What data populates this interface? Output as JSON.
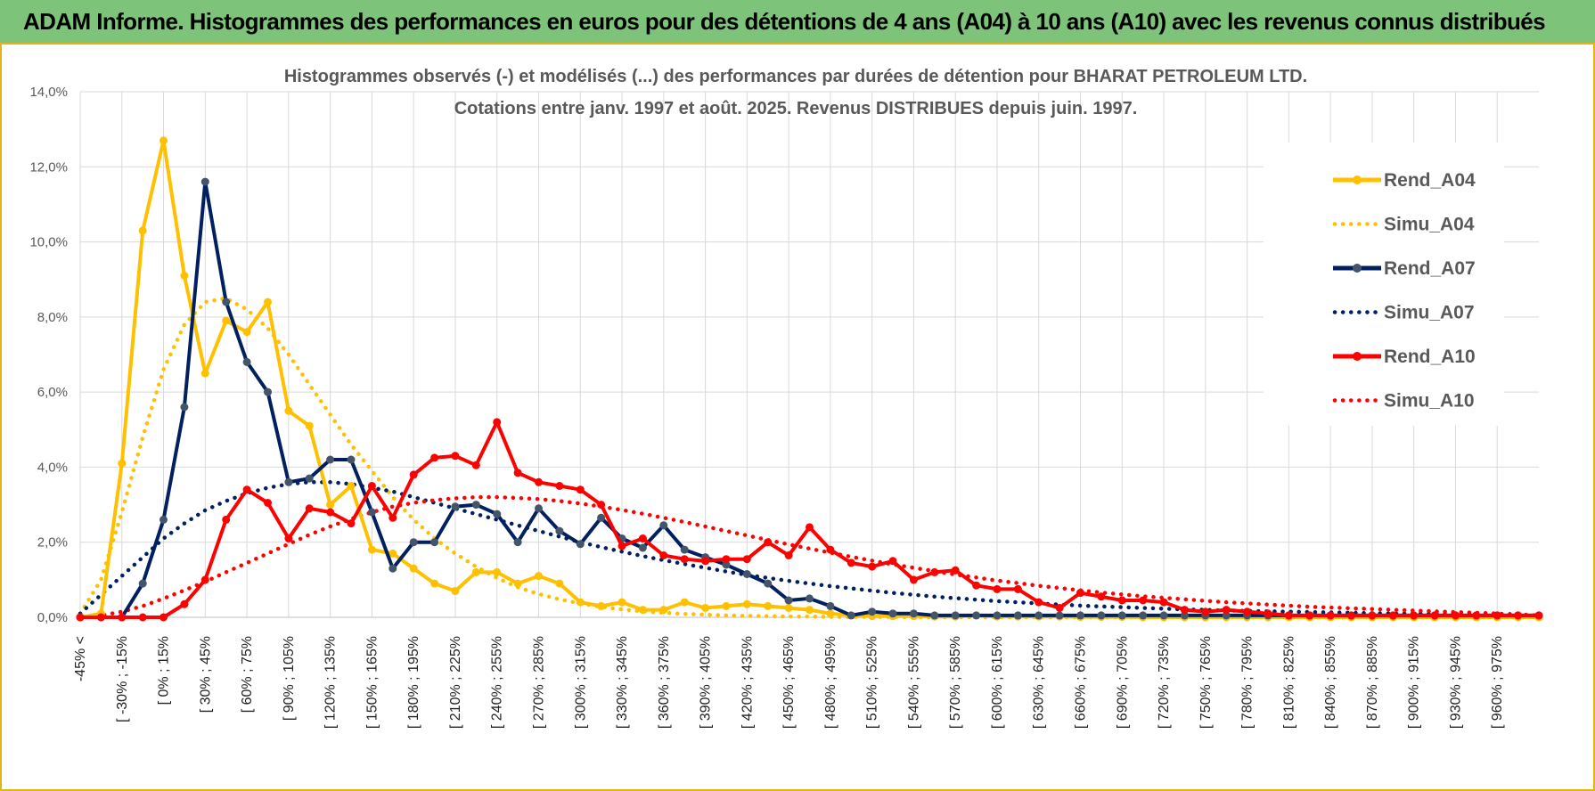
{
  "header": {
    "title": "ADAM Informe. Histogrammes des performances en euros pour des détentions de 4 ans (A04) à 10 ans (A10) avec les revenus connus distribués"
  },
  "chart_data": {
    "type": "line",
    "title": [
      "Histogrammes observés (-) et modélisés (...) des performances par durées de détention pour BHARAT PETROLEUM LTD.",
      "Cotations entre janv. 1997 et août. 2025. Revenus DISTRIBUES depuis juin. 1997."
    ],
    "y_ticks": [
      "0,0%",
      "2,0%",
      "4,0%",
      "6,0%",
      "8,0%",
      "10,0%",
      "12,0%",
      "14,0%"
    ],
    "ylim": [
      0,
      14
    ],
    "grid": true,
    "legend_position": "right",
    "x_labels": [
      "-45% <",
      "[ -30% ; -15%",
      "[ 0% ; 15%",
      "[ 30% ; 45%",
      "[ 60% ; 75%",
      "[ 90% ; 105%",
      "[ 120% ; 135%",
      "[ 150% ; 165%",
      "[ 180% ; 195%",
      "[ 210% ; 225%",
      "[ 240% ; 255%",
      "[ 270% ; 285%",
      "[ 300% ; 315%",
      "[ 330% ; 345%",
      "[ 360% ; 375%",
      "[ 390% ; 405%",
      "[ 420% ; 435%",
      "[ 450% ; 465%",
      "[ 480% ; 495%",
      "[ 510% ; 525%",
      "[ 540% ; 555%",
      "[ 570% ; 585%",
      "[ 600% ; 615%",
      "[ 630% ; 645%",
      "[ 660% ; 675%",
      "[ 690% ; 705%",
      "[ 720% ; 735%",
      "[ 750% ; 765%",
      "[ 780% ; 795%",
      "[ 810% ; 825%",
      "[ 840% ; 855%",
      "[ 870% ; 885%",
      "[ 900% ; 915%",
      "[ 930% ; 945%",
      "[ 960% ; 975%"
    ],
    "series": [
      {
        "name": "Rend_A04",
        "style": "solid",
        "color": "#ffc000",
        "values": [
          0,
          0.1,
          4.1,
          10.3,
          12.7,
          9.1,
          6.5,
          7.9,
          7.6,
          8.4,
          5.5,
          5.1,
          3.0,
          3.5,
          1.8,
          1.7,
          1.3,
          0.9,
          0.7,
          1.2,
          1.2,
          0.9,
          1.1,
          0.9,
          0.4,
          0.3,
          0.4,
          0.2,
          0.2,
          0.4,
          0.25,
          0.3,
          0.35,
          0.3,
          0.25,
          0.2,
          0.1,
          0.05,
          0.03,
          0.03,
          0.03,
          0.02,
          0.02,
          0.05,
          0.02,
          0.02,
          0.02,
          0.02,
          0.01,
          0.01,
          0.01,
          0,
          0,
          0,
          0,
          0,
          0,
          0,
          0,
          0,
          0,
          0,
          0,
          0,
          0,
          0,
          0,
          0,
          0,
          0,
          0
        ]
      },
      {
        "name": "Simu_A04",
        "style": "dotted",
        "color": "#ffc000",
        "values": [
          0.1,
          1.0,
          2.8,
          4.8,
          6.6,
          7.8,
          8.4,
          8.5,
          8.2,
          7.7,
          7.0,
          6.2,
          5.4,
          4.6,
          3.9,
          3.2,
          2.6,
          2.1,
          1.7,
          1.35,
          1.05,
          0.8,
          0.62,
          0.48,
          0.37,
          0.28,
          0.21,
          0.16,
          0.12,
          0.09,
          0.07,
          0.05,
          0.04,
          0.03,
          0.02,
          0.02,
          0.01,
          0.01,
          0.01,
          0.01,
          0,
          0,
          0,
          0,
          0,
          0,
          0,
          0,
          0,
          0,
          0,
          0,
          0,
          0,
          0,
          0,
          0,
          0,
          0,
          0,
          0,
          0,
          0,
          0,
          0,
          0,
          0,
          0,
          0,
          0,
          0
        ]
      },
      {
        "name": "Rend_A07",
        "style": "solid",
        "color": "#002060",
        "marker_color": "#44546a",
        "values": [
          0,
          0,
          0,
          0.9,
          2.6,
          5.6,
          11.6,
          8.4,
          6.8,
          6.0,
          3.6,
          3.7,
          4.2,
          4.2,
          2.8,
          1.3,
          2.0,
          2.0,
          2.95,
          3.0,
          2.75,
          2.0,
          2.9,
          2.3,
          1.95,
          2.65,
          2.1,
          1.85,
          2.45,
          1.8,
          1.6,
          1.4,
          1.15,
          0.9,
          0.45,
          0.5,
          0.3,
          0.05,
          0.15,
          0.1,
          0.1,
          0.05,
          0.05,
          0.05,
          0.05,
          0.05,
          0.05,
          0.05,
          0.05,
          0.05,
          0.05,
          0.05,
          0.05,
          0.05,
          0.05,
          0.05,
          0.05,
          0.05,
          0.05,
          0.05,
          0.05,
          0.05,
          0.05,
          0.05,
          0.05,
          0.05,
          0.05,
          0.05,
          0.05,
          0.05,
          0.05
        ]
      },
      {
        "name": "Simu_A07",
        "style": "dotted",
        "color": "#002060",
        "values": [
          0.1,
          0.6,
          1.1,
          1.6,
          2.1,
          2.5,
          2.85,
          3.1,
          3.3,
          3.45,
          3.55,
          3.6,
          3.6,
          3.55,
          3.45,
          3.35,
          3.2,
          3.05,
          2.9,
          2.75,
          2.6,
          2.45,
          2.3,
          2.15,
          2.0,
          1.87,
          1.75,
          1.63,
          1.52,
          1.42,
          1.32,
          1.22,
          1.13,
          1.05,
          0.97,
          0.9,
          0.83,
          0.77,
          0.71,
          0.65,
          0.6,
          0.55,
          0.51,
          0.47,
          0.43,
          0.4,
          0.37,
          0.34,
          0.31,
          0.29,
          0.27,
          0.25,
          0.23,
          0.21,
          0.2,
          0.18,
          0.17,
          0.16,
          0.15,
          0.14,
          0.13,
          0.12,
          0.11,
          0.1,
          0.1,
          0.09,
          0.08,
          0.07,
          0.06,
          0.05,
          0.04
        ]
      },
      {
        "name": "Rend_A10",
        "style": "solid",
        "color": "#ff0000",
        "values": [
          0,
          0,
          0,
          0,
          0,
          0.35,
          1.0,
          2.6,
          3.4,
          3.05,
          2.1,
          2.9,
          2.8,
          2.5,
          3.5,
          2.65,
          3.8,
          4.25,
          4.3,
          4.05,
          5.2,
          3.85,
          3.6,
          3.5,
          3.4,
          3.0,
          1.9,
          2.1,
          1.65,
          1.55,
          1.5,
          1.55,
          1.55,
          2.0,
          1.65,
          2.4,
          1.8,
          1.45,
          1.35,
          1.5,
          1.0,
          1.2,
          1.25,
          0.85,
          0.75,
          0.75,
          0.4,
          0.25,
          0.65,
          0.55,
          0.45,
          0.45,
          0.4,
          0.2,
          0.15,
          0.2,
          0.15,
          0.1,
          0.05,
          0.05,
          0.05,
          0.05,
          0.05,
          0.05,
          0.05,
          0.05,
          0.05,
          0.05,
          0.05,
          0.05,
          0.05
        ]
      },
      {
        "name": "Simu_A10",
        "style": "dotted",
        "color": "#ff0000",
        "values": [
          0,
          0.05,
          0.15,
          0.3,
          0.5,
          0.72,
          0.95,
          1.2,
          1.45,
          1.7,
          1.95,
          2.2,
          2.42,
          2.62,
          2.8,
          2.95,
          3.05,
          3.12,
          3.17,
          3.2,
          3.2,
          3.18,
          3.15,
          3.1,
          3.03,
          2.95,
          2.86,
          2.76,
          2.65,
          2.54,
          2.42,
          2.3,
          2.18,
          2.06,
          1.94,
          1.83,
          1.72,
          1.61,
          1.51,
          1.41,
          1.32,
          1.23,
          1.14,
          1.06,
          0.98,
          0.91,
          0.84,
          0.78,
          0.72,
          0.66,
          0.61,
          0.56,
          0.52,
          0.48,
          0.44,
          0.4,
          0.37,
          0.34,
          0.31,
          0.28,
          0.26,
          0.24,
          0.22,
          0.2,
          0.18,
          0.16,
          0.14,
          0.12,
          0.1,
          0.08,
          0.05
        ]
      }
    ]
  }
}
